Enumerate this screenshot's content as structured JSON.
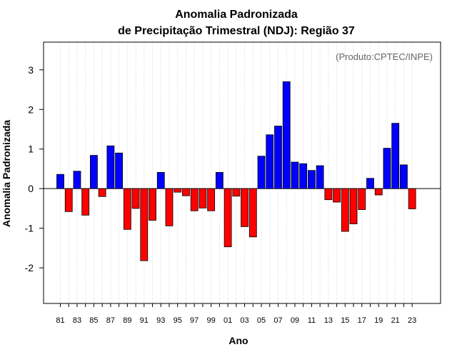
{
  "chart_data": {
    "type": "bar",
    "title_line1": "Anomalia Padronizada",
    "title_line2": "de Precipitação Trimestral (NDJ): Região 37",
    "xlabel": "Ano",
    "ylabel": "Anomalia Padronizada",
    "credit": "(Produto:CPTEC/INPE)",
    "ylim": [
      -2.9,
      3.7
    ],
    "yticks": [
      -2,
      -1,
      0,
      1,
      2,
      3
    ],
    "ytick_labels": [
      "-2",
      "-1",
      "0",
      "1",
      "2",
      "3"
    ],
    "xtick_labels": [
      "81",
      "83",
      "85",
      "87",
      "89",
      "91",
      "93",
      "95",
      "97",
      "99",
      "01",
      "03",
      "05",
      "07",
      "09",
      "11",
      "13",
      "15",
      "17",
      "19",
      "21",
      "23"
    ],
    "years": [
      1981,
      1982,
      1983,
      1984,
      1985,
      1986,
      1987,
      1988,
      1989,
      1990,
      1991,
      1992,
      1993,
      1994,
      1995,
      1996,
      1997,
      1998,
      1999,
      2000,
      2001,
      2002,
      2003,
      2004,
      2005,
      2006,
      2007,
      2008,
      2009,
      2010,
      2011,
      2012,
      2013,
      2014,
      2015,
      2016,
      2017,
      2018,
      2019,
      2020,
      2021,
      2022,
      2023
    ],
    "values": [
      0.36,
      -0.58,
      0.44,
      -0.67,
      0.84,
      -0.2,
      1.08,
      0.9,
      -1.03,
      -0.5,
      -1.82,
      -0.8,
      0.41,
      -0.94,
      -0.09,
      -0.18,
      -0.56,
      -0.49,
      -0.56,
      0.41,
      -1.47,
      -0.19,
      -0.96,
      -1.22,
      0.82,
      1.36,
      1.58,
      2.7,
      0.67,
      0.63,
      0.46,
      0.58,
      -0.28,
      -0.34,
      -1.08,
      -0.89,
      -0.53,
      0.26,
      -0.16,
      1.02,
      1.65,
      0.6,
      -0.51
    ],
    "colors": {
      "positive": "#0000ff",
      "negative": "#ff0000",
      "bar_edge": "#000000",
      "grid": "#d3d3d3"
    }
  }
}
